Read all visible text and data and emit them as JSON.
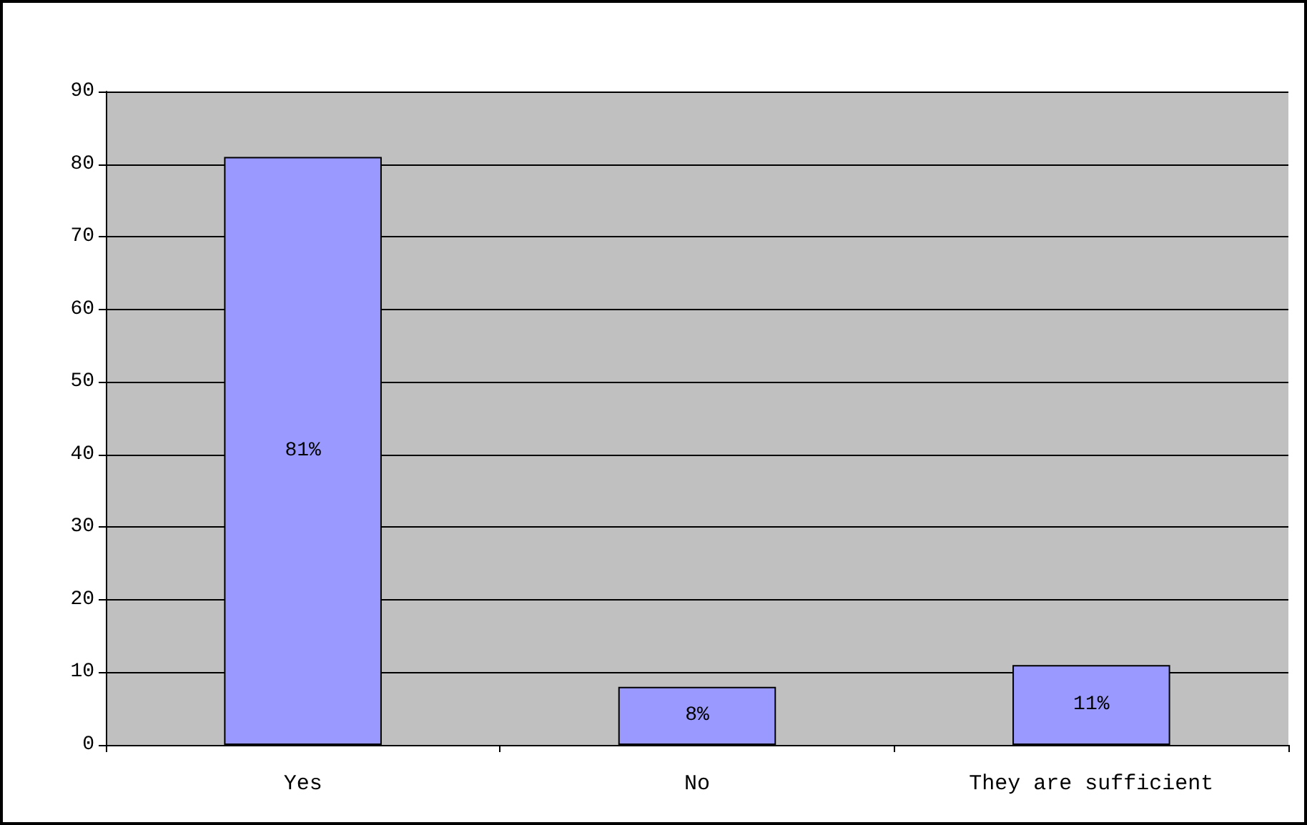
{
  "chart_data": {
    "type": "bar",
    "categories": [
      "Yes",
      "No",
      "They are sufficient"
    ],
    "values": [
      81,
      8,
      11
    ],
    "value_labels": [
      "81%",
      "8%",
      "11%"
    ],
    "color": "#9999ff",
    "ylim": [
      0,
      90
    ],
    "yticks": [
      0,
      10,
      20,
      30,
      40,
      50,
      60,
      70,
      80,
      90
    ],
    "grid": "y"
  }
}
